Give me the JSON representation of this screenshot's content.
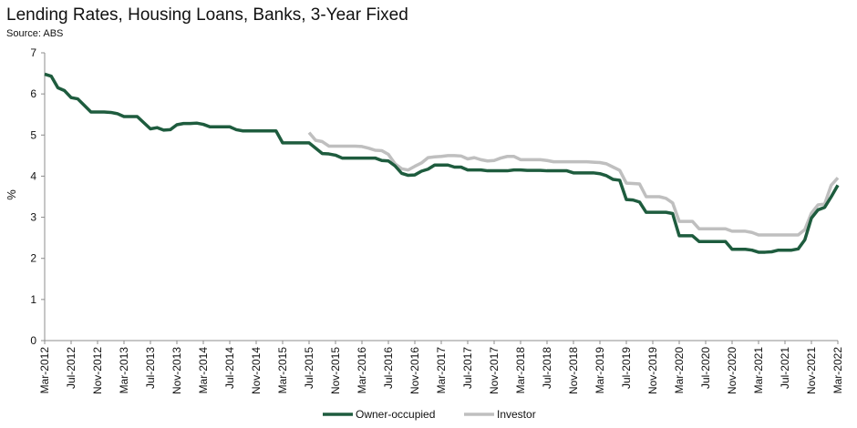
{
  "chart_data": {
    "type": "line",
    "title": "Lending Rates, Housing Loans, Banks, 3-Year Fixed",
    "subtitle": "Source: ABS",
    "ylabel": "%",
    "xlabel": "",
    "ylim": [
      0,
      7
    ],
    "yticks": [
      "0",
      "1",
      "2",
      "3",
      "4",
      "5",
      "6",
      "7"
    ],
    "xtick_labels": [
      "Mar-2012",
      "Jul-2012",
      "Nov-2012",
      "Mar-2013",
      "Jul-2013",
      "Nov-2013",
      "Mar-2014",
      "Jul-2014",
      "Nov-2014",
      "Mar-2015",
      "Jul-2015",
      "Nov-2015",
      "Mar-2016",
      "Jul-2016",
      "Nov-2016",
      "Mar-2017",
      "Jul-2017",
      "Nov-2017",
      "Mar-2018",
      "Jul-2018",
      "Nov-2018",
      "Mar-2019",
      "Jul-2019",
      "Nov-2019",
      "Mar-2020",
      "Jul-2020",
      "Nov-2020",
      "Mar-2021",
      "Jul-2021",
      "Nov-2021",
      "Mar-2022"
    ],
    "grid": false,
    "legend_position": "bottom",
    "series": [
      {
        "name": "Owner-occupied",
        "color": "#1e5c3e",
        "points": [
          [
            "2012-03",
            6.48
          ],
          [
            "2012-04",
            6.43
          ],
          [
            "2012-05",
            6.15
          ],
          [
            "2012-06",
            6.08
          ],
          [
            "2012-07",
            5.91
          ],
          [
            "2012-08",
            5.88
          ],
          [
            "2012-09",
            5.72
          ],
          [
            "2012-10",
            5.56
          ],
          [
            "2012-11",
            5.56
          ],
          [
            "2012-12",
            5.56
          ],
          [
            "2013-01",
            5.55
          ],
          [
            "2013-02",
            5.52
          ],
          [
            "2013-03",
            5.45
          ],
          [
            "2013-04",
            5.45
          ],
          [
            "2013-05",
            5.45
          ],
          [
            "2013-06",
            5.3
          ],
          [
            "2013-07",
            5.15
          ],
          [
            "2013-08",
            5.18
          ],
          [
            "2013-09",
            5.12
          ],
          [
            "2013-10",
            5.13
          ],
          [
            "2013-11",
            5.25
          ],
          [
            "2013-12",
            5.28
          ],
          [
            "2014-01",
            5.28
          ],
          [
            "2014-02",
            5.29
          ],
          [
            "2014-03",
            5.26
          ],
          [
            "2014-04",
            5.2
          ],
          [
            "2014-05",
            5.2
          ],
          [
            "2014-06",
            5.2
          ],
          [
            "2014-07",
            5.2
          ],
          [
            "2014-08",
            5.13
          ],
          [
            "2014-09",
            5.1
          ],
          [
            "2014-10",
            5.1
          ],
          [
            "2014-11",
            5.1
          ],
          [
            "2014-12",
            5.1
          ],
          [
            "2015-01",
            5.1
          ],
          [
            "2015-02",
            5.1
          ],
          [
            "2015-03",
            4.81
          ],
          [
            "2015-04",
            4.81
          ],
          [
            "2015-05",
            4.81
          ],
          [
            "2015-06",
            4.81
          ],
          [
            "2015-07",
            4.81
          ],
          [
            "2015-08",
            4.68
          ],
          [
            "2015-09",
            4.55
          ],
          [
            "2015-10",
            4.54
          ],
          [
            "2015-11",
            4.51
          ],
          [
            "2015-12",
            4.44
          ],
          [
            "2016-01",
            4.44
          ],
          [
            "2016-02",
            4.44
          ],
          [
            "2016-03",
            4.44
          ],
          [
            "2016-04",
            4.44
          ],
          [
            "2016-05",
            4.44
          ],
          [
            "2016-06",
            4.38
          ],
          [
            "2016-07",
            4.37
          ],
          [
            "2016-08",
            4.25
          ],
          [
            "2016-09",
            4.07
          ],
          [
            "2016-10",
            4.02
          ],
          [
            "2016-11",
            4.03
          ],
          [
            "2016-12",
            4.12
          ],
          [
            "2017-01",
            4.17
          ],
          [
            "2017-02",
            4.27
          ],
          [
            "2017-03",
            4.27
          ],
          [
            "2017-04",
            4.27
          ],
          [
            "2017-05",
            4.22
          ],
          [
            "2017-06",
            4.22
          ],
          [
            "2017-07",
            4.15
          ],
          [
            "2017-08",
            4.15
          ],
          [
            "2017-09",
            4.15
          ],
          [
            "2017-10",
            4.13
          ],
          [
            "2017-11",
            4.13
          ],
          [
            "2017-12",
            4.13
          ],
          [
            "2018-01",
            4.13
          ],
          [
            "2018-02",
            4.15
          ],
          [
            "2018-03",
            4.15
          ],
          [
            "2018-04",
            4.14
          ],
          [
            "2018-05",
            4.14
          ],
          [
            "2018-06",
            4.14
          ],
          [
            "2018-07",
            4.13
          ],
          [
            "2018-08",
            4.13
          ],
          [
            "2018-09",
            4.13
          ],
          [
            "2018-10",
            4.13
          ],
          [
            "2018-11",
            4.08
          ],
          [
            "2018-12",
            4.08
          ],
          [
            "2019-01",
            4.08
          ],
          [
            "2019-02",
            4.08
          ],
          [
            "2019-03",
            4.06
          ],
          [
            "2019-04",
            4.01
          ],
          [
            "2019-05",
            3.92
          ],
          [
            "2019-06",
            3.9
          ],
          [
            "2019-07",
            3.43
          ],
          [
            "2019-08",
            3.42
          ],
          [
            "2019-09",
            3.37
          ],
          [
            "2019-10",
            3.12
          ],
          [
            "2019-11",
            3.12
          ],
          [
            "2019-12",
            3.12
          ],
          [
            "2020-01",
            3.12
          ],
          [
            "2020-02",
            3.09
          ],
          [
            "2020-03",
            2.55
          ],
          [
            "2020-04",
            2.55
          ],
          [
            "2020-05",
            2.55
          ],
          [
            "2020-06",
            2.41
          ],
          [
            "2020-07",
            2.41
          ],
          [
            "2020-08",
            2.41
          ],
          [
            "2020-09",
            2.41
          ],
          [
            "2020-10",
            2.41
          ],
          [
            "2020-11",
            2.22
          ],
          [
            "2020-12",
            2.22
          ],
          [
            "2021-01",
            2.22
          ],
          [
            "2021-02",
            2.2
          ],
          [
            "2021-03",
            2.15
          ],
          [
            "2021-04",
            2.15
          ],
          [
            "2021-05",
            2.16
          ],
          [
            "2021-06",
            2.2
          ],
          [
            "2021-07",
            2.2
          ],
          [
            "2021-08",
            2.2
          ],
          [
            "2021-09",
            2.23
          ],
          [
            "2021-10",
            2.45
          ],
          [
            "2021-11",
            2.98
          ],
          [
            "2021-12",
            3.18
          ],
          [
            "2022-01",
            3.24
          ],
          [
            "2022-02",
            3.5
          ],
          [
            "2022-03",
            3.78
          ]
        ]
      },
      {
        "name": "Investor",
        "color": "#bfbfbf",
        "points": [
          [
            "2015-07",
            5.06
          ],
          [
            "2015-08",
            4.87
          ],
          [
            "2015-09",
            4.84
          ],
          [
            "2015-10",
            4.73
          ],
          [
            "2015-11",
            4.73
          ],
          [
            "2015-12",
            4.73
          ],
          [
            "2016-01",
            4.73
          ],
          [
            "2016-02",
            4.73
          ],
          [
            "2016-03",
            4.72
          ],
          [
            "2016-04",
            4.68
          ],
          [
            "2016-05",
            4.63
          ],
          [
            "2016-06",
            4.62
          ],
          [
            "2016-07",
            4.53
          ],
          [
            "2016-08",
            4.3
          ],
          [
            "2016-09",
            4.18
          ],
          [
            "2016-10",
            4.15
          ],
          [
            "2016-11",
            4.24
          ],
          [
            "2016-12",
            4.32
          ],
          [
            "2017-01",
            4.45
          ],
          [
            "2017-02",
            4.47
          ],
          [
            "2017-03",
            4.48
          ],
          [
            "2017-04",
            4.5
          ],
          [
            "2017-05",
            4.5
          ],
          [
            "2017-06",
            4.49
          ],
          [
            "2017-07",
            4.42
          ],
          [
            "2017-08",
            4.45
          ],
          [
            "2017-09",
            4.4
          ],
          [
            "2017-10",
            4.37
          ],
          [
            "2017-11",
            4.38
          ],
          [
            "2017-12",
            4.44
          ],
          [
            "2018-01",
            4.48
          ],
          [
            "2018-02",
            4.48
          ],
          [
            "2018-03",
            4.4
          ],
          [
            "2018-04",
            4.4
          ],
          [
            "2018-05",
            4.4
          ],
          [
            "2018-06",
            4.4
          ],
          [
            "2018-07",
            4.38
          ],
          [
            "2018-08",
            4.35
          ],
          [
            "2018-09",
            4.35
          ],
          [
            "2018-10",
            4.35
          ],
          [
            "2018-11",
            4.35
          ],
          [
            "2018-12",
            4.35
          ],
          [
            "2019-01",
            4.35
          ],
          [
            "2019-02",
            4.34
          ],
          [
            "2019-03",
            4.33
          ],
          [
            "2019-04",
            4.3
          ],
          [
            "2019-05",
            4.22
          ],
          [
            "2019-06",
            4.14
          ],
          [
            "2019-07",
            3.83
          ],
          [
            "2019-08",
            3.82
          ],
          [
            "2019-09",
            3.81
          ],
          [
            "2019-10",
            3.5
          ],
          [
            "2019-11",
            3.5
          ],
          [
            "2019-12",
            3.5
          ],
          [
            "2020-01",
            3.46
          ],
          [
            "2020-02",
            3.35
          ],
          [
            "2020-03",
            2.9
          ],
          [
            "2020-04",
            2.9
          ],
          [
            "2020-05",
            2.9
          ],
          [
            "2020-06",
            2.72
          ],
          [
            "2020-07",
            2.72
          ],
          [
            "2020-08",
            2.72
          ],
          [
            "2020-09",
            2.72
          ],
          [
            "2020-10",
            2.72
          ],
          [
            "2020-11",
            2.66
          ],
          [
            "2020-12",
            2.66
          ],
          [
            "2021-01",
            2.66
          ],
          [
            "2021-02",
            2.63
          ],
          [
            "2021-03",
            2.57
          ],
          [
            "2021-04",
            2.57
          ],
          [
            "2021-05",
            2.57
          ],
          [
            "2021-06",
            2.57
          ],
          [
            "2021-07",
            2.57
          ],
          [
            "2021-08",
            2.57
          ],
          [
            "2021-09",
            2.57
          ],
          [
            "2021-10",
            2.7
          ],
          [
            "2021-11",
            3.1
          ],
          [
            "2021-12",
            3.3
          ],
          [
            "2022-01",
            3.32
          ],
          [
            "2022-02",
            3.78
          ],
          [
            "2022-03",
            3.96
          ]
        ]
      }
    ]
  }
}
